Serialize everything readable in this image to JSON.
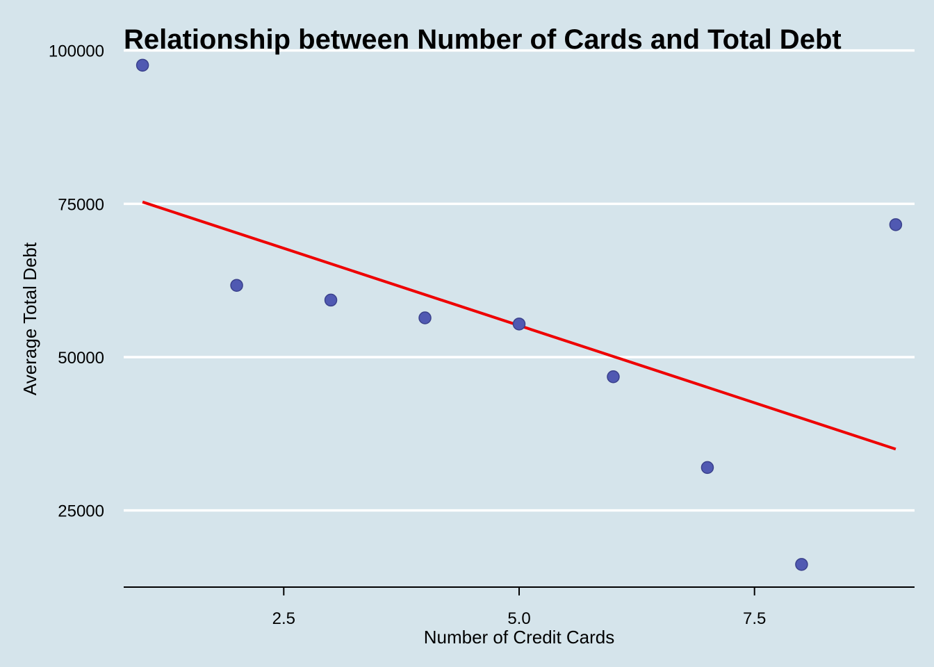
{
  "chart_data": {
    "type": "scatter",
    "title": "Relationship between Number of Cards and Total Debt",
    "xlabel": "Number of Credit Cards",
    "ylabel": "Average Total Debt",
    "xlim": [
      0.8,
      9.2
    ],
    "ylim": [
      12500,
      102000
    ],
    "x_ticks": [
      2.5,
      5.0,
      7.5
    ],
    "x_tick_labels": [
      "2.5",
      "5.0",
      "7.5"
    ],
    "y_ticks": [
      25000,
      50000,
      75000,
      100000
    ],
    "y_tick_labels": [
      "25000",
      "50000",
      "75000",
      "100000"
    ],
    "grid": "horizontal major lines only",
    "legend": "none",
    "series": [
      {
        "x": [
          1,
          2,
          3,
          4,
          5,
          6,
          7,
          8,
          9
        ],
        "y": [
          97600,
          61700,
          59300,
          56400,
          55400,
          46800,
          32000,
          16200,
          71600
        ]
      }
    ],
    "trendline": {
      "type": "linear fit",
      "x": [
        1,
        9
      ],
      "y": [
        75300,
        35000
      ]
    },
    "colors": {
      "background": "#d5e4eb",
      "points": "#5059b2",
      "point_outline": "#3a418c",
      "trendline": "#ee0000",
      "grid": "#ffffff"
    }
  }
}
